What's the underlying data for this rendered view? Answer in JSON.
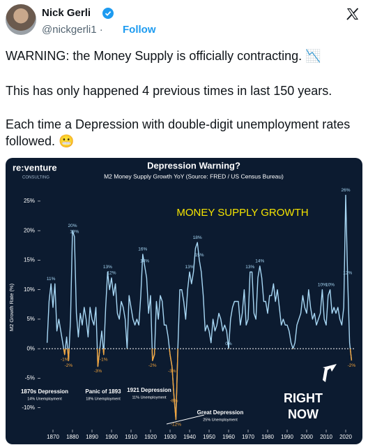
{
  "tweet": {
    "author": "Nick Gerli",
    "handle": "@nickgerli1",
    "separator": "·",
    "follow": "Follow",
    "paragraphs": [
      "WARNING: the Money Supply is officially contracting. 📉",
      "This has only happened 4 previous times in last 150 years.",
      "Each time a Depression with double-digit unemployment rates followed. 😬"
    ]
  },
  "chart_data": {
    "type": "line",
    "title": "Depression Warning?",
    "subtitle": "M2 Money Supply Growth YoY  (Source: FRED / US Census Bureau)",
    "logo": "re:venture",
    "logo_sub": "CONSULTING",
    "y_label": "M2 Growth Rate (%)",
    "heading": "MONEY SUPPLY GROWTH",
    "annotations": [
      "1870s Depression",
      "14% Unemployment",
      "Panic of 1893",
      "18% Unemployment",
      "1921 Depression",
      "11% Unemployment",
      "Great Depression",
      "25% Unemployment",
      "RIGHT",
      "NOW"
    ],
    "x": [
      1867,
      1868,
      1869,
      1870,
      1871,
      1872,
      1873,
      1874,
      1875,
      1876,
      1877,
      1878,
      1879,
      1880,
      1881,
      1882,
      1883,
      1884,
      1885,
      1886,
      1887,
      1888,
      1889,
      1890,
      1891,
      1892,
      1893,
      1894,
      1895,
      1896,
      1897,
      1898,
      1899,
      1900,
      1901,
      1902,
      1903,
      1904,
      1905,
      1906,
      1907,
      1908,
      1909,
      1910,
      1911,
      1912,
      1913,
      1914,
      1915,
      1916,
      1917,
      1918,
      1919,
      1920,
      1921,
      1922,
      1923,
      1924,
      1925,
      1926,
      1927,
      1928,
      1929,
      1930,
      1931,
      1932,
      1933,
      1934,
      1935,
      1936,
      1937,
      1938,
      1939,
      1940,
      1941,
      1942,
      1943,
      1944,
      1945,
      1946,
      1947,
      1948,
      1949,
      1950,
      1951,
      1952,
      1953,
      1954,
      1955,
      1956,
      1957,
      1958,
      1959,
      1960,
      1961,
      1962,
      1963,
      1964,
      1965,
      1966,
      1967,
      1968,
      1969,
      1970,
      1971,
      1972,
      1973,
      1974,
      1975,
      1976,
      1977,
      1978,
      1979,
      1980,
      1981,
      1982,
      1983,
      1984,
      1985,
      1986,
      1987,
      1988,
      1989,
      1990,
      1991,
      1992,
      1993,
      1994,
      1995,
      1996,
      1997,
      1998,
      1999,
      2000,
      2001,
      2002,
      2003,
      2004,
      2005,
      2006,
      2007,
      2008,
      2009,
      2010,
      2011,
      2012,
      2013,
      2014,
      2015,
      2016,
      2017,
      2018,
      2019,
      2020,
      2021,
      2022,
      2023
    ],
    "series": [
      {
        "name": "M2 Growth",
        "color": "#a8d8f5",
        "negative_color": "#f2a33a",
        "values": [
          1,
          8,
          11,
          7,
          11,
          3,
          5,
          3,
          1,
          -1,
          2,
          -2,
          5,
          20,
          19,
          6,
          2,
          6,
          4,
          7,
          5,
          2,
          7,
          5,
          4,
          7,
          -3,
          0,
          3,
          -1,
          7,
          13,
          10,
          12,
          9,
          11,
          6,
          5,
          8,
          7,
          5,
          0,
          9,
          7,
          5,
          4,
          5,
          4,
          9,
          16,
          14,
          12,
          6,
          9,
          -2,
          -1,
          8,
          5,
          9,
          8,
          4,
          4,
          2,
          -1,
          -3,
          -8,
          -12,
          0,
          10,
          10,
          8,
          5,
          10,
          13,
          11,
          13,
          17,
          18,
          15,
          13,
          9,
          3,
          4,
          3,
          1,
          5,
          3,
          4,
          6,
          5,
          3,
          4,
          3,
          0,
          5,
          7,
          8,
          8,
          8,
          4,
          6,
          10,
          4,
          5,
          13,
          13,
          6,
          5,
          12,
          14,
          12,
          8,
          8,
          6,
          9,
          9,
          11,
          8,
          10,
          7,
          4,
          5,
          4,
          4,
          3,
          1,
          0,
          1,
          4,
          5,
          6,
          9,
          7,
          6,
          10,
          7,
          5,
          6,
          4,
          5,
          6,
          10,
          5,
          4,
          9,
          10,
          6,
          7,
          6,
          7,
          5,
          4,
          7,
          26,
          12,
          1,
          -2
        ],
        "value_labels": [
          null,
          null,
          "11%",
          null,
          null,
          null,
          null,
          null,
          null,
          "-1%",
          null,
          "-2%",
          null,
          "20%",
          "19%",
          null,
          null,
          null,
          null,
          null,
          null,
          null,
          null,
          null,
          null,
          null,
          "-3%",
          null,
          null,
          "-1%",
          null,
          "13%",
          null,
          "12%",
          null,
          null,
          null,
          null,
          null,
          null,
          null,
          null,
          null,
          null,
          null,
          null,
          null,
          null,
          null,
          "16%",
          "14%",
          null,
          null,
          null,
          "-2%",
          null,
          null,
          null,
          null,
          null,
          null,
          null,
          null,
          null,
          "-3%",
          "-8%",
          "-12%",
          null,
          null,
          null,
          null,
          null,
          null,
          "13%",
          null,
          null,
          null,
          "18%",
          "15%",
          null,
          null,
          null,
          null,
          null,
          null,
          null,
          null,
          null,
          null,
          null,
          null,
          null,
          null,
          "0%",
          null,
          null,
          null,
          null,
          null,
          null,
          null,
          null,
          null,
          null,
          "13%",
          null,
          null,
          null,
          null,
          "14%",
          null,
          null,
          null,
          null,
          null,
          null,
          null,
          null,
          null,
          null,
          null,
          null,
          null,
          null,
          null,
          null,
          null,
          null,
          null,
          null,
          null,
          null,
          null,
          null,
          null,
          null,
          null,
          null,
          null,
          null,
          null,
          "10%",
          null,
          null,
          null,
          "10%",
          null,
          null,
          null,
          null,
          null,
          null,
          null,
          "26%",
          "12%",
          null,
          "-2%"
        ]
      }
    ],
    "xlim": [
      1865,
      2025
    ],
    "xticks": [
      1870,
      1880,
      1890,
      1900,
      1910,
      1920,
      1930,
      1940,
      1950,
      1960,
      1970,
      1980,
      1990,
      2000,
      2010,
      2020
    ],
    "ylim": [
      -13,
      27
    ],
    "yticks": [
      {
        "value": -10,
        "label": "-10%"
      },
      {
        "value": -5,
        "label": "-5%"
      },
      {
        "value": 0,
        "label": "0%"
      },
      {
        "value": 5,
        "label": "5%"
      },
      {
        "value": 10,
        "label": "10%"
      },
      {
        "value": 15,
        "label": "15%"
      },
      {
        "value": 20,
        "label": "20%"
      },
      {
        "value": 25,
        "label": "25%"
      }
    ],
    "grid": false
  }
}
